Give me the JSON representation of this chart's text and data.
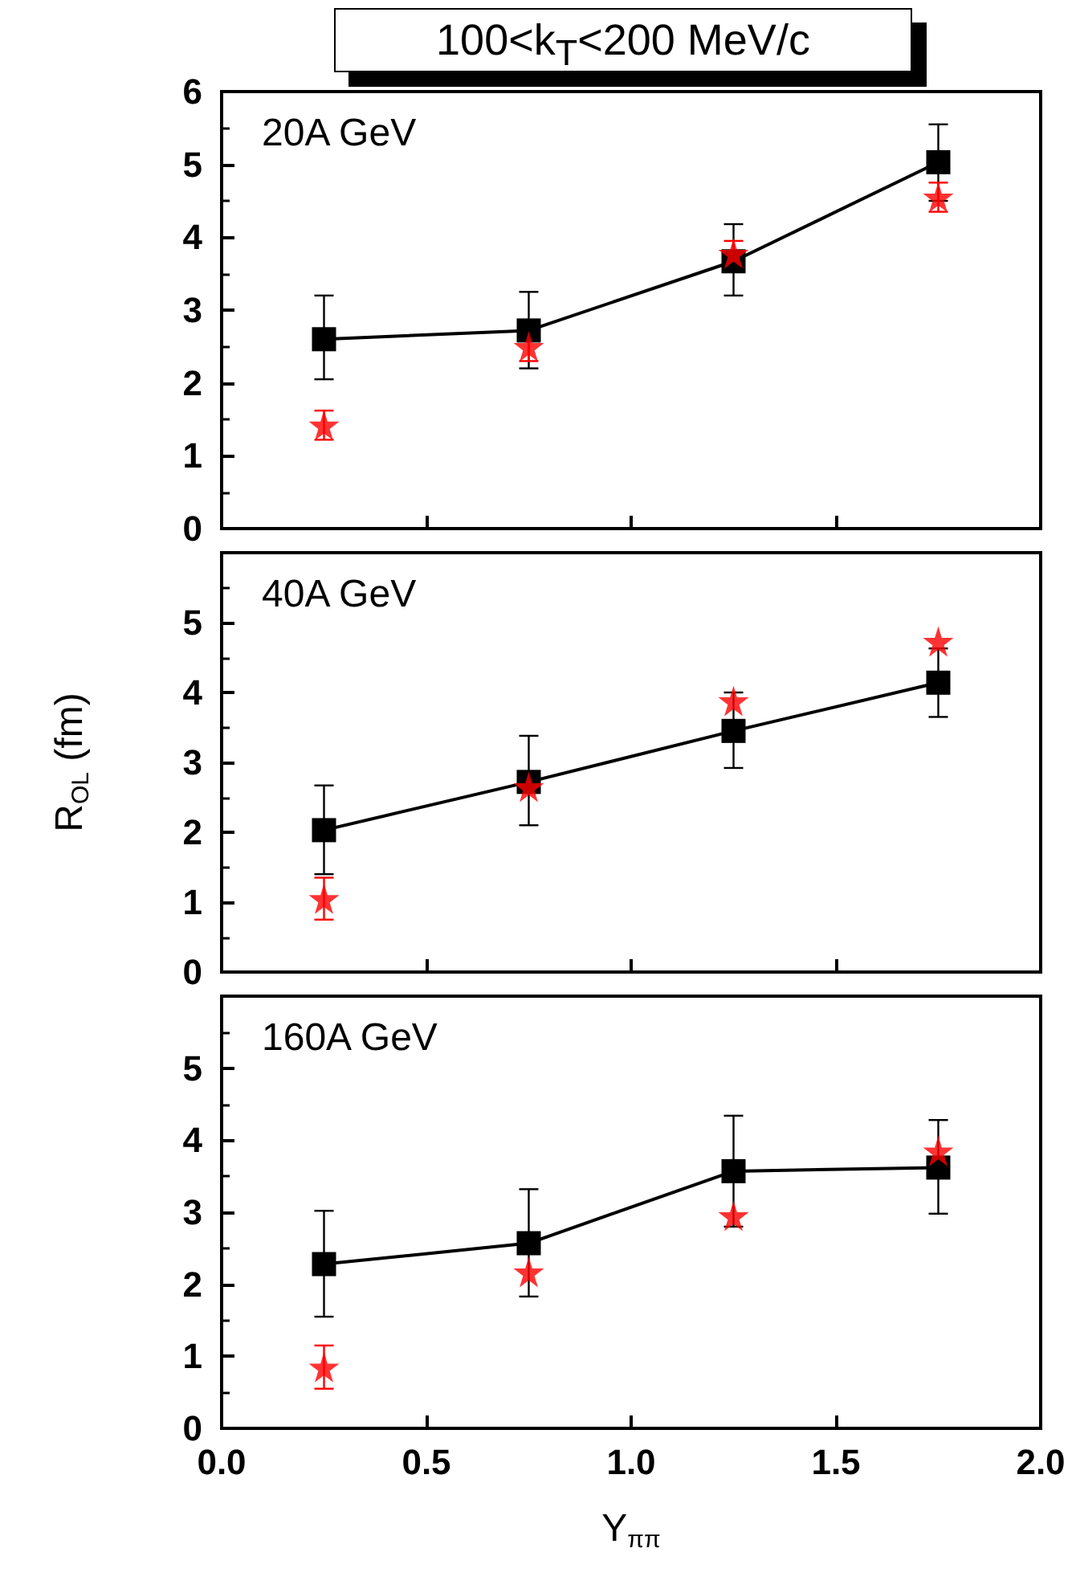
{
  "chart_data": [
    {
      "type": "line",
      "title": "100<k$_{T}$<200 MeV/c",
      "annotations": [
        "20A GeV"
      ],
      "x": [
        0.25,
        0.75,
        1.25,
        1.75
      ],
      "xlim": [
        0,
        2
      ],
      "xticks": [
        {
          "value": 0,
          "label": null
        },
        {
          "value": 0.5,
          "label": null
        },
        {
          "value": 1,
          "label": null
        },
        {
          "value": 1.5,
          "label": null
        },
        {
          "value": 2,
          "label": null
        }
      ],
      "ylim": [
        0,
        6
      ],
      "yticks": [
        0,
        1,
        2,
        3,
        4,
        5,
        6
      ],
      "tick_labels": "y",
      "grid": false,
      "line_style": "solid",
      "series": [
        {
          "color": "#000000",
          "marker": "square",
          "values": [
            2.6,
            2.72,
            3.67,
            5.03
          ],
          "errors": [
            [
              2.05,
              3.2
            ],
            [
              2.2,
              3.25
            ],
            [
              3.2,
              4.18
            ],
            [
              4.5,
              5.55
            ]
          ]
        },
        {
          "type": "scatter",
          "color": "#ff0000",
          "marker": "star",
          "values": [
            1.42,
            2.5,
            3.78,
            4.55
          ],
          "errors": [
            [
              1.22,
              1.62
            ],
            [
              2.3,
              2.68
            ],
            [
              3.6,
              3.95
            ],
            [
              4.35,
              4.75
            ]
          ]
        }
      ]
    },
    {
      "type": "line",
      "ylabel": "R$_{OL}$ (fm)",
      "annotations": [
        "40A GeV"
      ],
      "x": [
        0.25,
        0.75,
        1.25,
        1.75
      ],
      "xlim": [
        0,
        2
      ],
      "xticks": [
        {
          "value": 0,
          "label": null
        },
        {
          "value": 0.5,
          "label": null
        },
        {
          "value": 1,
          "label": null
        },
        {
          "value": 1.5,
          "label": null
        },
        {
          "value": 2,
          "label": null
        }
      ],
      "ylim": [
        0,
        6
      ],
      "yticks": [
        0,
        1,
        2,
        3,
        4,
        5
      ],
      "tick_labels": "y",
      "grid": false,
      "line_style": "solid",
      "series": [
        {
          "color": "#000000",
          "marker": "square",
          "values": [
            2.03,
            2.72,
            3.45,
            4.14
          ],
          "errors": [
            [
              1.4,
              2.67
            ],
            [
              2.1,
              3.38
            ],
            [
              2.92,
              4.0
            ],
            [
              3.65,
              4.63
            ]
          ]
        },
        {
          "type": "scatter",
          "color": "#ff0000",
          "marker": "star",
          "values": [
            1.05,
            2.65,
            3.88,
            4.73
          ],
          "errors": [
            [
              0.75,
              1.35
            ],
            null,
            null,
            null
          ]
        }
      ]
    },
    {
      "type": "line",
      "xlabel": "Y$_{ππ}$",
      "annotations": [
        "160A GeV"
      ],
      "x": [
        0.25,
        0.75,
        1.25,
        1.75
      ],
      "xlim": [
        0,
        2
      ],
      "xticks": [
        {
          "value": 0,
          "label": "0.0"
        },
        {
          "value": 0.5,
          "label": "0.5"
        },
        {
          "value": 1,
          "label": "1.0"
        },
        {
          "value": 1.5,
          "label": "1.5"
        },
        {
          "value": 2,
          "label": "2.0"
        }
      ],
      "ylim": [
        0,
        6
      ],
      "yticks": [
        0,
        1,
        2,
        3,
        4,
        5
      ],
      "grid": false,
      "line_style": "solid",
      "series": [
        {
          "color": "#000000",
          "marker": "square",
          "values": [
            2.28,
            2.57,
            3.57,
            3.62
          ],
          "errors": [
            [
              1.55,
              3.02
            ],
            [
              1.83,
              3.32
            ],
            [
              2.8,
              4.34
            ],
            [
              2.98,
              4.28
            ]
          ]
        },
        {
          "type": "scatter",
          "color": "#ff0000",
          "marker": "star",
          "values": [
            0.85,
            2.17,
            2.95,
            3.85
          ],
          "errors": [
            [
              0.55,
              1.15
            ],
            null,
            null,
            null
          ]
        }
      ]
    }
  ]
}
